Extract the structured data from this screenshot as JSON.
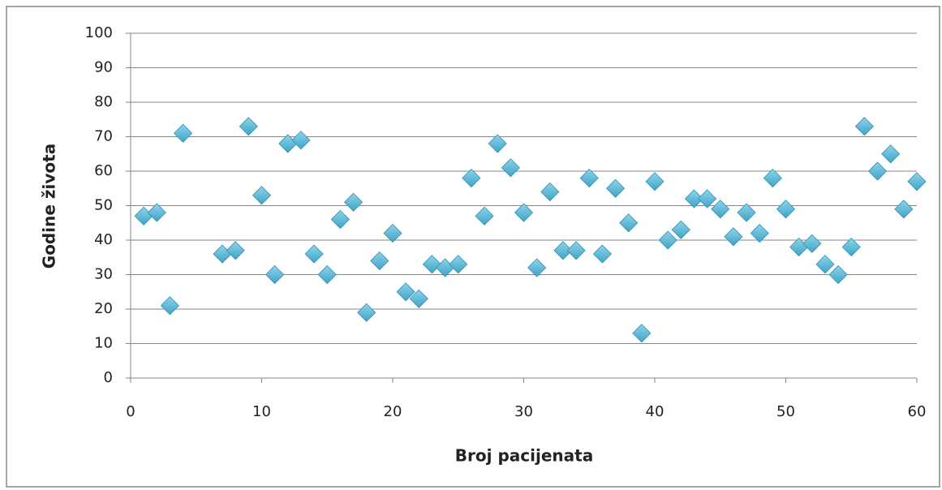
{
  "chart_data": {
    "type": "scatter",
    "x_label": "Broj pacijenata",
    "y_label": "Godine života",
    "x": [
      1,
      2,
      3,
      4,
      7,
      8,
      9,
      10,
      11,
      12,
      13,
      14,
      15,
      16,
      17,
      18,
      19,
      20,
      21,
      22,
      23,
      24,
      25,
      26,
      27,
      28,
      29,
      30,
      31,
      32,
      33,
      34,
      35,
      36,
      37,
      38,
      39,
      40,
      41,
      42,
      43,
      44,
      45,
      46,
      47,
      48,
      49,
      50,
      51,
      52,
      53,
      54,
      55,
      56,
      57,
      58,
      59,
      60
    ],
    "values": [
      47,
      48,
      21,
      71,
      36,
      37,
      73,
      53,
      30,
      68,
      69,
      36,
      30,
      46,
      51,
      19,
      34,
      42,
      25,
      23,
      33,
      32,
      33,
      58,
      47,
      68,
      61,
      48,
      32,
      54,
      37,
      37,
      58,
      36,
      55,
      45,
      13,
      57,
      40,
      43,
      52,
      52,
      49,
      41,
      48,
      42,
      58,
      49,
      38,
      39,
      33,
      30,
      38,
      73,
      60,
      65,
      49,
      57
    ],
    "color": "#3ea5c8",
    "xlim": [
      0,
      60
    ],
    "xticks": [
      0,
      10,
      20,
      30,
      40,
      50,
      60
    ],
    "ylim": [
      0,
      100
    ],
    "yticks": [
      0,
      10,
      20,
      30,
      40,
      50,
      60,
      70,
      80,
      90,
      100
    ],
    "grid": true
  }
}
